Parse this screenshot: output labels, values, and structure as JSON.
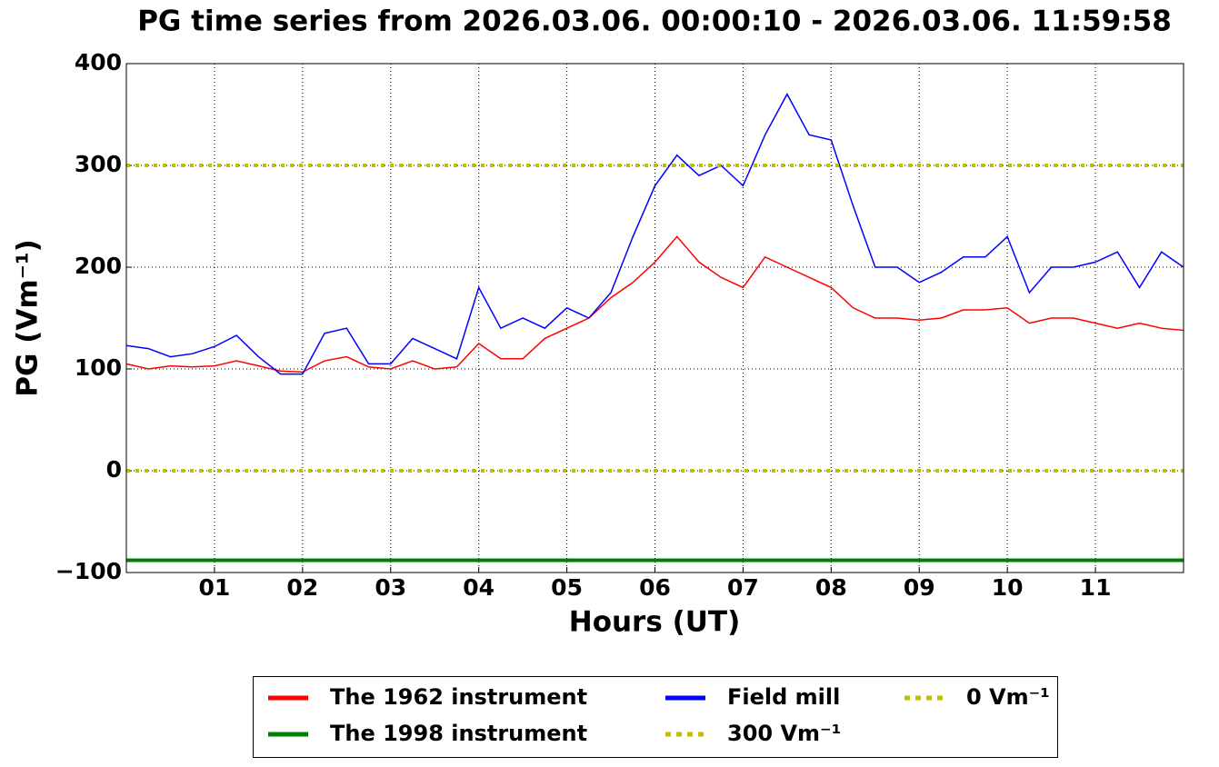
{
  "chart_data": {
    "type": "line",
    "title": "PG time series from 2026.03.06. 00:00:10 - 2026.03.06. 11:59:58",
    "x_label": "Hours (UT)",
    "y_label": "PG (Vm⁻¹)",
    "xlim": [
      0,
      12
    ],
    "xticks": [
      {
        "value": 1,
        "label": "01"
      },
      {
        "value": 2,
        "label": "02"
      },
      {
        "value": 3,
        "label": "03"
      },
      {
        "value": 4,
        "label": "04"
      },
      {
        "value": 5,
        "label": "05"
      },
      {
        "value": 6,
        "label": "06"
      },
      {
        "value": 7,
        "label": "07"
      },
      {
        "value": 8,
        "label": "08"
      },
      {
        "value": 9,
        "label": "09"
      },
      {
        "value": 10,
        "label": "10"
      },
      {
        "value": 11,
        "label": "11"
      }
    ],
    "ylim": [
      -100,
      400
    ],
    "yticks": [
      {
        "value": -100,
        "label": "−100"
      },
      0,
      100,
      200,
      300,
      400
    ],
    "grid": true,
    "legend": "bottom",
    "x": [
      0,
      0.25,
      0.5,
      0.75,
      1,
      1.25,
      1.5,
      1.75,
      2,
      2.25,
      2.5,
      2.75,
      3,
      3.25,
      3.5,
      3.75,
      4,
      4.25,
      4.5,
      4.75,
      5,
      5.25,
      5.5,
      5.75,
      6,
      6.25,
      6.5,
      6.75,
      7,
      7.25,
      7.5,
      7.75,
      8,
      8.25,
      8.5,
      8.75,
      9,
      9.25,
      9.5,
      9.75,
      10,
      10.25,
      10.5,
      10.75,
      11,
      11.25,
      11.5,
      11.75,
      12
    ],
    "series": [
      {
        "name": "The 1962 instrument",
        "color": "#ff0000",
        "width": 1.5,
        "values": [
          105,
          100,
          103,
          102,
          103,
          108,
          103,
          98,
          97,
          108,
          112,
          102,
          100,
          108,
          100,
          102,
          125,
          110,
          110,
          130,
          140,
          150,
          170,
          185,
          205,
          230,
          205,
          190,
          180,
          210,
          200,
          190,
          180,
          160,
          150,
          150,
          148,
          150,
          158,
          158,
          160,
          145,
          150,
          150,
          145,
          140,
          145,
          140,
          138
        ]
      },
      {
        "name": "The 1998 instrument",
        "color": "#008000",
        "width": 4,
        "values": [
          -88,
          -88,
          -88,
          -88,
          -88,
          -88,
          -88,
          -88,
          -88,
          -88,
          -88,
          -88,
          -88,
          -88,
          -88,
          -88,
          -88,
          -88,
          -88,
          -88,
          -88,
          -88,
          -88,
          -88,
          -88,
          -88,
          -88,
          -88,
          -88,
          -88,
          -88,
          -88,
          -88,
          -88,
          -88,
          -88,
          -88,
          -88,
          -88,
          -88,
          -88,
          -88,
          -88,
          -88,
          -88,
          -88,
          -88,
          -88,
          -88
        ]
      },
      {
        "name": "Field mill",
        "color": "#0000ff",
        "width": 1.5,
        "values": [
          123,
          120,
          112,
          115,
          122,
          133,
          112,
          95,
          95,
          135,
          140,
          105,
          105,
          130,
          120,
          110,
          180,
          140,
          150,
          140,
          160,
          150,
          175,
          230,
          280,
          310,
          290,
          300,
          280,
          330,
          370,
          330,
          325,
          260,
          200,
          200,
          185,
          195,
          210,
          210,
          230,
          175,
          200,
          200,
          205,
          215,
          180,
          215,
          200
        ]
      }
    ],
    "hlines": [
      {
        "name": "300 Vm⁻¹",
        "value": 300,
        "color": "#bfbf00"
      },
      {
        "name": "0 Vm⁻¹",
        "value": 0,
        "color": "#bfbf00"
      }
    ]
  }
}
